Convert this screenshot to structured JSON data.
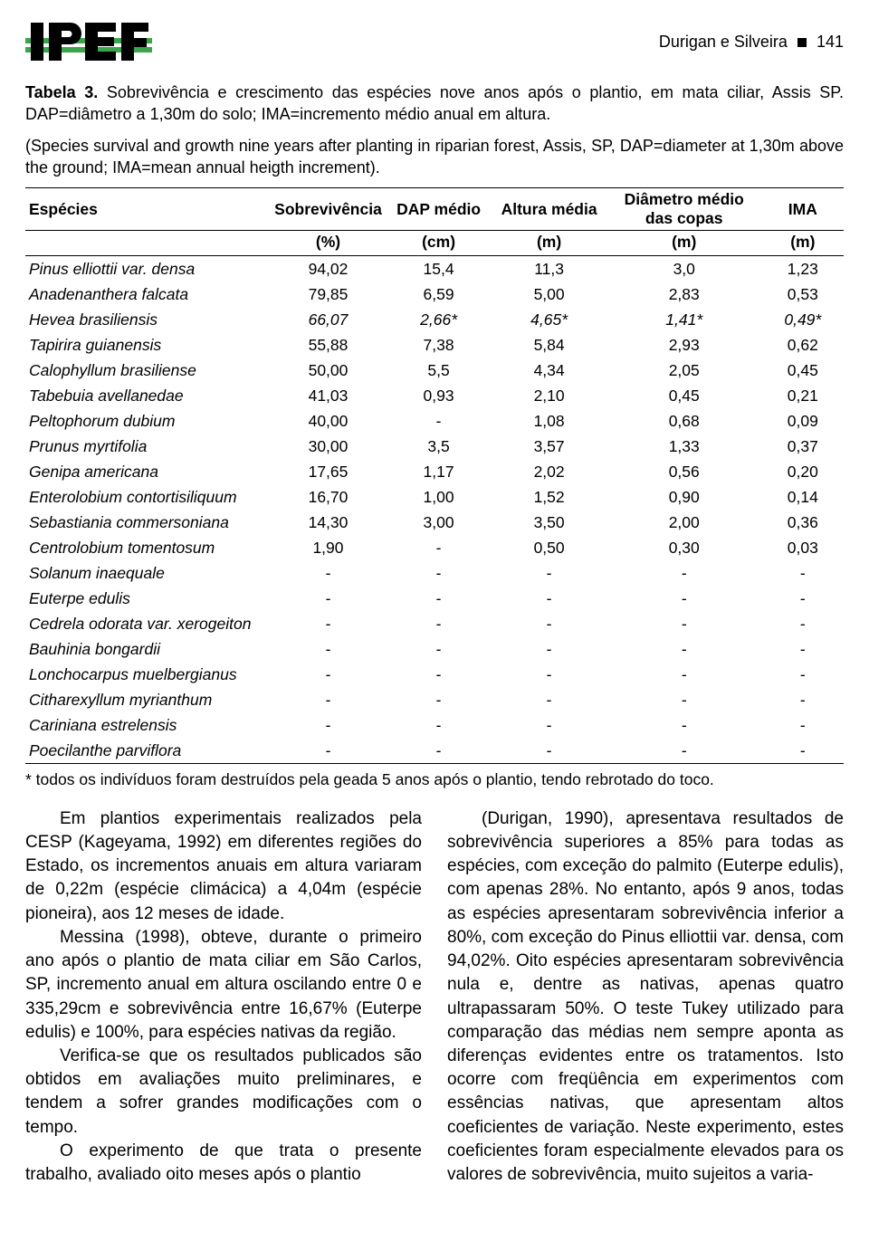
{
  "header": {
    "authors": "Durigan e Silveira",
    "page": "141"
  },
  "caption": {
    "label": "Tabela 3.",
    "text_pt": "Sobrevivência e crescimento das espécies nove anos após o plantio, em mata ciliar, Assis SP. DAP=diâmetro a 1,30m do solo; IMA=incremento médio anual em altura.",
    "text_en": "(Species survival and growth nine years after planting in riparian forest, Assis, SP, DAP=diameter at 1,30m above the ground; IMA=mean annual heigth increment)."
  },
  "table": {
    "columns": [
      "Espécies",
      "Sobrevivência",
      "DAP médio",
      "Altura média",
      "Diâmetro médio das copas",
      "IMA"
    ],
    "units": [
      "",
      "(%)",
      "(cm)",
      "(m)",
      "(m)",
      "(m)"
    ],
    "col_widths": [
      "30%",
      "14%",
      "13%",
      "14%",
      "19%",
      "10%"
    ],
    "rows": [
      {
        "sp": "Pinus elliottii var.   densa",
        "v": [
          "94,02",
          "15,4",
          "11,3",
          "3,0",
          "1,23"
        ],
        "italic": false
      },
      {
        "sp": "Anadenanthera falcata",
        "v": [
          "79,85",
          "6,59",
          "5,00",
          "2,83",
          "0,53"
        ],
        "italic": false
      },
      {
        "sp": "Hevea brasiliensis",
        "v": [
          "66,07",
          "2,66*",
          "4,65*",
          "1,41*",
          "0,49*"
        ],
        "italic": true
      },
      {
        "sp": "Tapirira guianensis",
        "v": [
          "55,88",
          "7,38",
          "5,84",
          "2,93",
          "0,62"
        ],
        "italic": false
      },
      {
        "sp": "Calophyllum brasiliense",
        "v": [
          "50,00",
          "5,5",
          "4,34",
          "2,05",
          "0,45"
        ],
        "italic": false
      },
      {
        "sp": "Tabebuia avellanedae",
        "v": [
          "41,03",
          "0,93",
          "2,10",
          "0,45",
          "0,21"
        ],
        "italic": false
      },
      {
        "sp": "Peltophorum dubium",
        "v": [
          "40,00",
          "-",
          "1,08",
          "0,68",
          "0,09"
        ],
        "italic": false
      },
      {
        "sp": "Prunus myrtifolia",
        "v": [
          "30,00",
          "3,5",
          "3,57",
          "1,33",
          "0,37"
        ],
        "italic": false
      },
      {
        "sp": "Genipa americana",
        "v": [
          "17,65",
          "1,17",
          "2,02",
          "0,56",
          "0,20"
        ],
        "italic": false
      },
      {
        "sp": "Enterolobium contortisiliquum",
        "v": [
          "16,70",
          "1,00",
          "1,52",
          "0,90",
          "0,14"
        ],
        "italic": false
      },
      {
        "sp": "Sebastiania commersoniana",
        "v": [
          "14,30",
          "3,00",
          "3,50",
          "2,00",
          "0,36"
        ],
        "italic": false
      },
      {
        "sp": "Centrolobium tomentosum",
        "v": [
          "1,90",
          "-",
          "0,50",
          "0,30",
          "0,03"
        ],
        "italic": false
      },
      {
        "sp": "Solanum inaequale",
        "v": [
          "-",
          "-",
          "-",
          "-",
          "-"
        ],
        "italic": false
      },
      {
        "sp": "Euterpe edulis",
        "v": [
          "-",
          "-",
          "-",
          "-",
          "-"
        ],
        "italic": false
      },
      {
        "sp": "Cedrela odorata var. xerogeiton",
        "v": [
          "-",
          "-",
          "-",
          "-",
          "-"
        ],
        "italic": false
      },
      {
        "sp": "Bauhinia bongardii",
        "v": [
          "-",
          "-",
          "-",
          "-",
          "-"
        ],
        "italic": false
      },
      {
        "sp": "Lonchocarpus muelbergianus",
        "v": [
          "-",
          "-",
          "-",
          "-",
          "-"
        ],
        "italic": false
      },
      {
        "sp": "Citharexyllum myrianthum",
        "v": [
          "-",
          "-",
          "-",
          "-",
          "-"
        ],
        "italic": false
      },
      {
        "sp": "Cariniana estrelensis",
        "v": [
          "-",
          "-",
          "-",
          "-",
          "-"
        ],
        "italic": false
      },
      {
        "sp": "Poecilanthe parviflora",
        "v": [
          "-",
          "-",
          "-",
          "-",
          "-"
        ],
        "italic": false
      }
    ]
  },
  "footnote": "* todos os indivíduos foram destruídos pela geada 5 anos após o  plantio, tendo rebrotado do toco.",
  "body": {
    "left": [
      "Em plantios experimentais realizados pela CESP (Kageyama, 1992) em diferentes regiões do Estado, os incrementos anuais em altura variaram de 0,22m (espécie climácica) a 4,04m (espécie pioneira), aos 12 meses de idade.",
      "Messina (1998), obteve, durante o primeiro ano após o plantio de mata ciliar em São Carlos, SP, incremento anual em altura oscilando entre 0 e 335,29cm e sobrevivência entre 16,67% (Euterpe edulis) e 100%, para espécies nativas da região.",
      "Verifica-se que os resultados publicados são obtidos em avaliações muito preliminares, e tendem a sofrer grandes modificações com o tempo.",
      "O experimento de que trata o presente trabalho, avaliado oito meses após o plantio"
    ],
    "right": [
      "(Durigan, 1990), apresentava resultados de sobrevivência superiores a 85% para todas as espécies, com exceção do palmito (Euterpe edulis), com apenas 28%. No entanto, após 9 anos, todas as espécies apresentaram sobrevivência inferior a 80%, com exceção do Pinus elliottii var. densa, com 94,02%. Oito espécies apresentaram sobrevivência nula e, dentre as nativas, apenas quatro ultrapassaram 50%. O teste Tukey utilizado para comparação das médias nem sempre aponta as diferenças evidentes entre os tratamentos. Isto ocorre com freqüência em experimentos com essências nativas, que apresentam altos coeficientes de variação. Neste experimento, estes coeficientes foram especialmente elevados para os valores de sobrevivência, muito sujeitos a varia-"
    ]
  },
  "colors": {
    "text": "#000000",
    "bg": "#ffffff",
    "logo_green": "#3aa54b",
    "logo_black": "#000000"
  }
}
